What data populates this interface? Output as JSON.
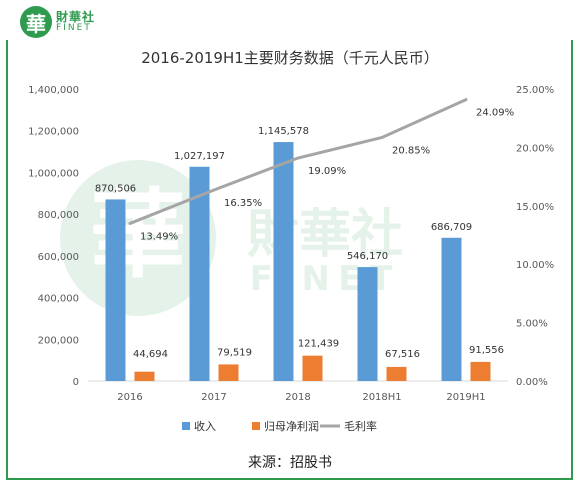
{
  "brand": {
    "logo_glyph": "華",
    "name_cn": "財華社",
    "name_en": "FINET",
    "color": "#2e9b4f"
  },
  "watermark": {
    "glyph": "華",
    "name_cn": "財華社",
    "name_en": "FINET"
  },
  "source": "来源：招股书",
  "chart_data": {
    "type": "bar",
    "title": "2016-2019H1主要财务数据（千元人民币）",
    "categories": [
      "2016",
      "2017",
      "2018",
      "2018H1",
      "2019H1"
    ],
    "y_left": {
      "min": 0,
      "max": 1400000,
      "step": 200000,
      "tick_labels": [
        "0",
        "200,000",
        "400,000",
        "600,000",
        "800,000",
        "1,000,000",
        "1,200,000",
        "1,400,000"
      ]
    },
    "y_right": {
      "min": 0,
      "max": 25,
      "step": 5,
      "tick_labels": [
        "0.00%",
        "5.00%",
        "10.00%",
        "15.00%",
        "20.00%",
        "25.00%"
      ]
    },
    "grid": false,
    "legend_position": "bottom",
    "series": [
      {
        "name": "收入",
        "kind": "bar",
        "axis": "left",
        "color": "#5b9bd5",
        "values": [
          870506,
          1027197,
          1145578,
          546170,
          686709
        ],
        "labels": [
          "870,506",
          "1,027,197",
          "1,145,578",
          "546,170",
          "686,709"
        ]
      },
      {
        "name": "归母净利润",
        "kind": "bar",
        "axis": "left",
        "color": "#ed7d31",
        "values": [
          44694,
          79519,
          121439,
          67516,
          91556
        ],
        "labels": [
          "44,694",
          "79,519",
          "121,439",
          "67,516",
          "91,556"
        ]
      },
      {
        "name": "毛利率",
        "kind": "line",
        "axis": "right",
        "color": "#a5a5a5",
        "values": [
          13.49,
          16.35,
          19.09,
          20.85,
          24.09
        ],
        "labels": [
          "13.49%",
          "16.35%",
          "19.09%",
          "20.85%",
          "24.09%"
        ]
      }
    ]
  }
}
